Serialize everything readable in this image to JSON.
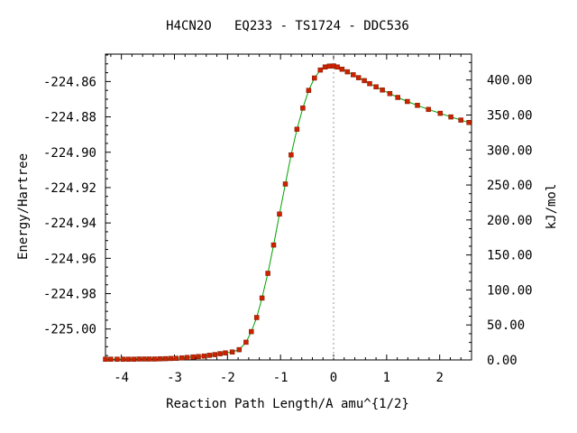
{
  "chart_data": {
    "type": "line",
    "title": "H4CN2O   EQ233 - TS1724 - DDC536",
    "xlabel": "Reaction Path Length/A amu^{1/2}",
    "ylabel": "Energy/Hartree",
    "y2label": "kJ/mol",
    "xlim": [
      -4.3,
      2.6
    ],
    "ylim": [
      -225.0175,
      -224.8445
    ],
    "y2lim": [
      0,
      437
    ],
    "x_ticks": [
      -4,
      -3,
      -2,
      -1,
      0,
      1,
      2
    ],
    "x_tick_labels": [
      "-4",
      "-3",
      "-2",
      "-1",
      "0",
      "1",
      "2"
    ],
    "y_ticks": [
      -224.86,
      -224.88,
      -224.9,
      -224.92,
      -224.94,
      -224.96,
      -224.98,
      -225.0
    ],
    "y_tick_labels": [
      "-224.86",
      "-224.88",
      "-224.90",
      "-224.92",
      "-224.94",
      "-224.96",
      "-224.98",
      "-225.00"
    ],
    "y2_ticks": [
      400,
      350,
      300,
      250,
      200,
      150,
      100,
      50,
      0
    ],
    "y2_tick_labels": [
      "400.00",
      "350.00",
      "300.00",
      "250.00",
      "200.00",
      "150.00",
      "100.00",
      "50.00",
      "0.00"
    ],
    "ts_marker_x": 0,
    "line_color": "#00a000",
    "marker_color": "#cc2200",
    "series": [
      {
        "x": [
          -4.3,
          -4.2,
          -4.08,
          -3.97,
          -3.87,
          -3.77,
          -3.67,
          -3.57,
          -3.47,
          -3.37,
          -3.27,
          -3.17,
          -3.07,
          -2.97,
          -2.86,
          -2.76,
          -2.65,
          -2.55,
          -2.44,
          -2.34,
          -2.24,
          -2.14,
          -2.04,
          -1.91,
          -1.78,
          -1.65,
          -1.55,
          -1.45,
          -1.35,
          -1.24,
          -1.13,
          -1.02,
          -0.91,
          -0.8,
          -0.69,
          -0.58,
          -0.47,
          -0.36,
          -0.25,
          -0.16,
          -0.08,
          0.0,
          0.07,
          0.16,
          0.26,
          0.37,
          0.47,
          0.58,
          0.68,
          0.8,
          0.92,
          1.06,
          1.21,
          1.39,
          1.58,
          1.79,
          2.01,
          2.21,
          2.4,
          2.55
        ],
        "y": [
          -225.0171,
          -225.0171,
          -225.0171,
          -225.0171,
          -225.0171,
          -225.0171,
          -225.017,
          -225.017,
          -225.017,
          -225.017,
          -225.0169,
          -225.0168,
          -225.0167,
          -225.0166,
          -225.0164,
          -225.0161,
          -225.0158,
          -225.0156,
          -225.0153,
          -225.0149,
          -225.0145,
          -225.014,
          -225.0135,
          -225.013,
          -225.0117,
          -225.0075,
          -225.0015,
          -224.9935,
          -224.9825,
          -224.9685,
          -224.9525,
          -224.935,
          -224.918,
          -224.9015,
          -224.887,
          -224.875,
          -224.865,
          -224.858,
          -224.8535,
          -224.8518,
          -224.8513,
          -224.8512,
          -224.8518,
          -224.853,
          -224.8545,
          -224.8562,
          -224.8578,
          -224.8595,
          -224.8612,
          -224.863,
          -224.8648,
          -224.8668,
          -224.869,
          -224.8713,
          -224.8735,
          -224.8758,
          -224.878,
          -224.88,
          -224.8818,
          -224.8832
        ]
      }
    ]
  }
}
